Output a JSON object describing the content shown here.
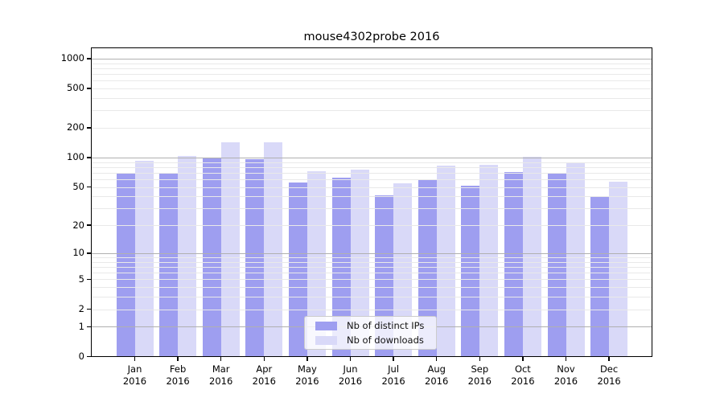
{
  "title": "mouse4302probe 2016",
  "colors": {
    "distinct_ips": "#9e9ef0",
    "downloads": "#d9d9f8",
    "grid_major": "#b0b0b0",
    "grid_minor": "#e9e9e9",
    "axis": "#000000",
    "legend_border": "#cccccc"
  },
  "legend": {
    "entries": [
      "Nb of distinct IPs",
      "Nb of downloads"
    ]
  },
  "chart_data": {
    "type": "bar",
    "title": "mouse4302probe 2016",
    "categories": [
      "Jan",
      "Feb",
      "Mar",
      "Apr",
      "May",
      "Jun",
      "Jul",
      "Aug",
      "Sep",
      "Oct",
      "Nov",
      "Dec"
    ],
    "category_year": "2016",
    "series": [
      {
        "name": "Nb of distinct IPs",
        "color": "#9e9ef0",
        "values": [
          70,
          69,
          100,
          96,
          56,
          62,
          41,
          59,
          51,
          71,
          68,
          40
        ]
      },
      {
        "name": "Nb of downloads",
        "color": "#d9d9f8",
        "values": [
          93,
          104,
          143,
          143,
          72,
          75,
          55,
          82,
          84,
          102,
          89,
          57
        ]
      }
    ],
    "xlabel": "",
    "ylabel": "",
    "yscale": "log1p",
    "yticks": [
      0,
      1,
      2,
      5,
      10,
      20,
      50,
      100,
      200,
      500,
      1000
    ],
    "ylim": [
      0,
      1270
    ],
    "grid": "horizontal",
    "grid_over_bars": true,
    "legend_position": "lower center inside"
  }
}
